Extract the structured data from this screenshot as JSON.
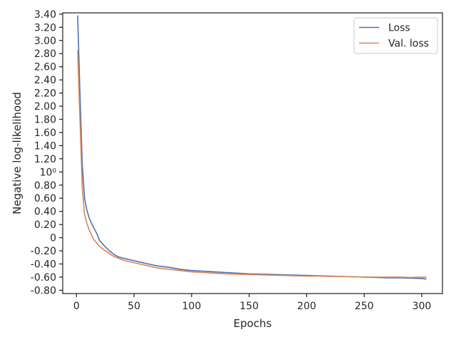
{
  "chart_data": {
    "type": "line",
    "xlabel": "Epochs",
    "ylabel": "Negative log-likelihood",
    "xlim": [
      -12,
      318
    ],
    "ylim": [
      -0.85,
      3.42
    ],
    "x_ticks": [
      0,
      50,
      100,
      150,
      200,
      250,
      300
    ],
    "y_ticks": [
      {
        "value": -0.8,
        "label": "-0.80"
      },
      {
        "value": -0.6,
        "label": "-0.60"
      },
      {
        "value": -0.4,
        "label": "-0.40"
      },
      {
        "value": -0.2,
        "label": "-0.20"
      },
      {
        "value": 0.0,
        "label": "0"
      },
      {
        "value": 0.2,
        "label": "0.20"
      },
      {
        "value": 0.4,
        "label": "0.40"
      },
      {
        "value": 0.6,
        "label": "0.60"
      },
      {
        "value": 0.8,
        "label": "0.80"
      },
      {
        "value": 1.0,
        "label": "10⁰"
      },
      {
        "value": 1.2,
        "label": "1.20"
      },
      {
        "value": 1.4,
        "label": "1.40"
      },
      {
        "value": 1.6,
        "label": "1.60"
      },
      {
        "value": 1.8,
        "label": "1.80"
      },
      {
        "value": 2.0,
        "label": "2.00"
      },
      {
        "value": 2.2,
        "label": "2.20"
      },
      {
        "value": 2.4,
        "label": "2.40"
      },
      {
        "value": 2.6,
        "label": "2.60"
      },
      {
        "value": 2.8,
        "label": "2.80"
      },
      {
        "value": 3.0,
        "label": "3.00"
      },
      {
        "value": 3.2,
        "label": "3.20"
      },
      {
        "value": 3.4,
        "label": "3.40"
      }
    ],
    "grid": false,
    "legend_position": "top-right",
    "series": [
      {
        "name": "Loss",
        "color": "#4c72b0",
        "x": [
          1,
          3,
          5,
          7,
          9,
          11,
          13,
          15,
          18,
          20,
          22,
          25,
          28,
          30,
          33,
          36,
          40,
          45,
          50,
          55,
          60,
          65,
          70,
          75,
          80,
          90,
          100,
          110,
          120,
          130,
          140,
          150,
          160,
          170,
          180,
          190,
          200,
          210,
          220,
          230,
          240,
          250,
          260,
          270,
          280,
          290,
          300,
          304
        ],
        "y": [
          3.38,
          2.2,
          1.1,
          0.6,
          0.42,
          0.3,
          0.22,
          0.15,
          0.05,
          -0.04,
          -0.08,
          -0.14,
          -0.19,
          -0.22,
          -0.26,
          -0.29,
          -0.31,
          -0.33,
          -0.35,
          -0.37,
          -0.39,
          -0.41,
          -0.43,
          -0.44,
          -0.45,
          -0.48,
          -0.5,
          -0.51,
          -0.52,
          -0.53,
          -0.54,
          -0.55,
          -0.555,
          -0.56,
          -0.565,
          -0.57,
          -0.575,
          -0.58,
          -0.585,
          -0.59,
          -0.595,
          -0.6,
          -0.605,
          -0.61,
          -0.61,
          -0.615,
          -0.62,
          -0.63
        ]
      },
      {
        "name": "Val. loss",
        "color": "#dd8452",
        "x": [
          1,
          3,
          5,
          7,
          9,
          11,
          13,
          15,
          18,
          20,
          22,
          25,
          28,
          30,
          33,
          36,
          40,
          45,
          50,
          55,
          60,
          65,
          70,
          75,
          80,
          90,
          100,
          110,
          120,
          130,
          140,
          150,
          160,
          170,
          180,
          190,
          200,
          210,
          220,
          230,
          240,
          250,
          260,
          270,
          280,
          290,
          300,
          304
        ],
        "y": [
          2.85,
          1.8,
          0.75,
          0.35,
          0.22,
          0.12,
          0.04,
          -0.03,
          -0.09,
          -0.13,
          -0.16,
          -0.2,
          -0.23,
          -0.26,
          -0.29,
          -0.31,
          -0.34,
          -0.36,
          -0.38,
          -0.4,
          -0.42,
          -0.44,
          -0.46,
          -0.47,
          -0.48,
          -0.5,
          -0.52,
          -0.53,
          -0.54,
          -0.55,
          -0.555,
          -0.56,
          -0.565,
          -0.57,
          -0.575,
          -0.58,
          -0.585,
          -0.585,
          -0.59,
          -0.59,
          -0.595,
          -0.6,
          -0.6,
          -0.6,
          -0.6,
          -0.605,
          -0.6,
          -0.6
        ]
      }
    ]
  }
}
